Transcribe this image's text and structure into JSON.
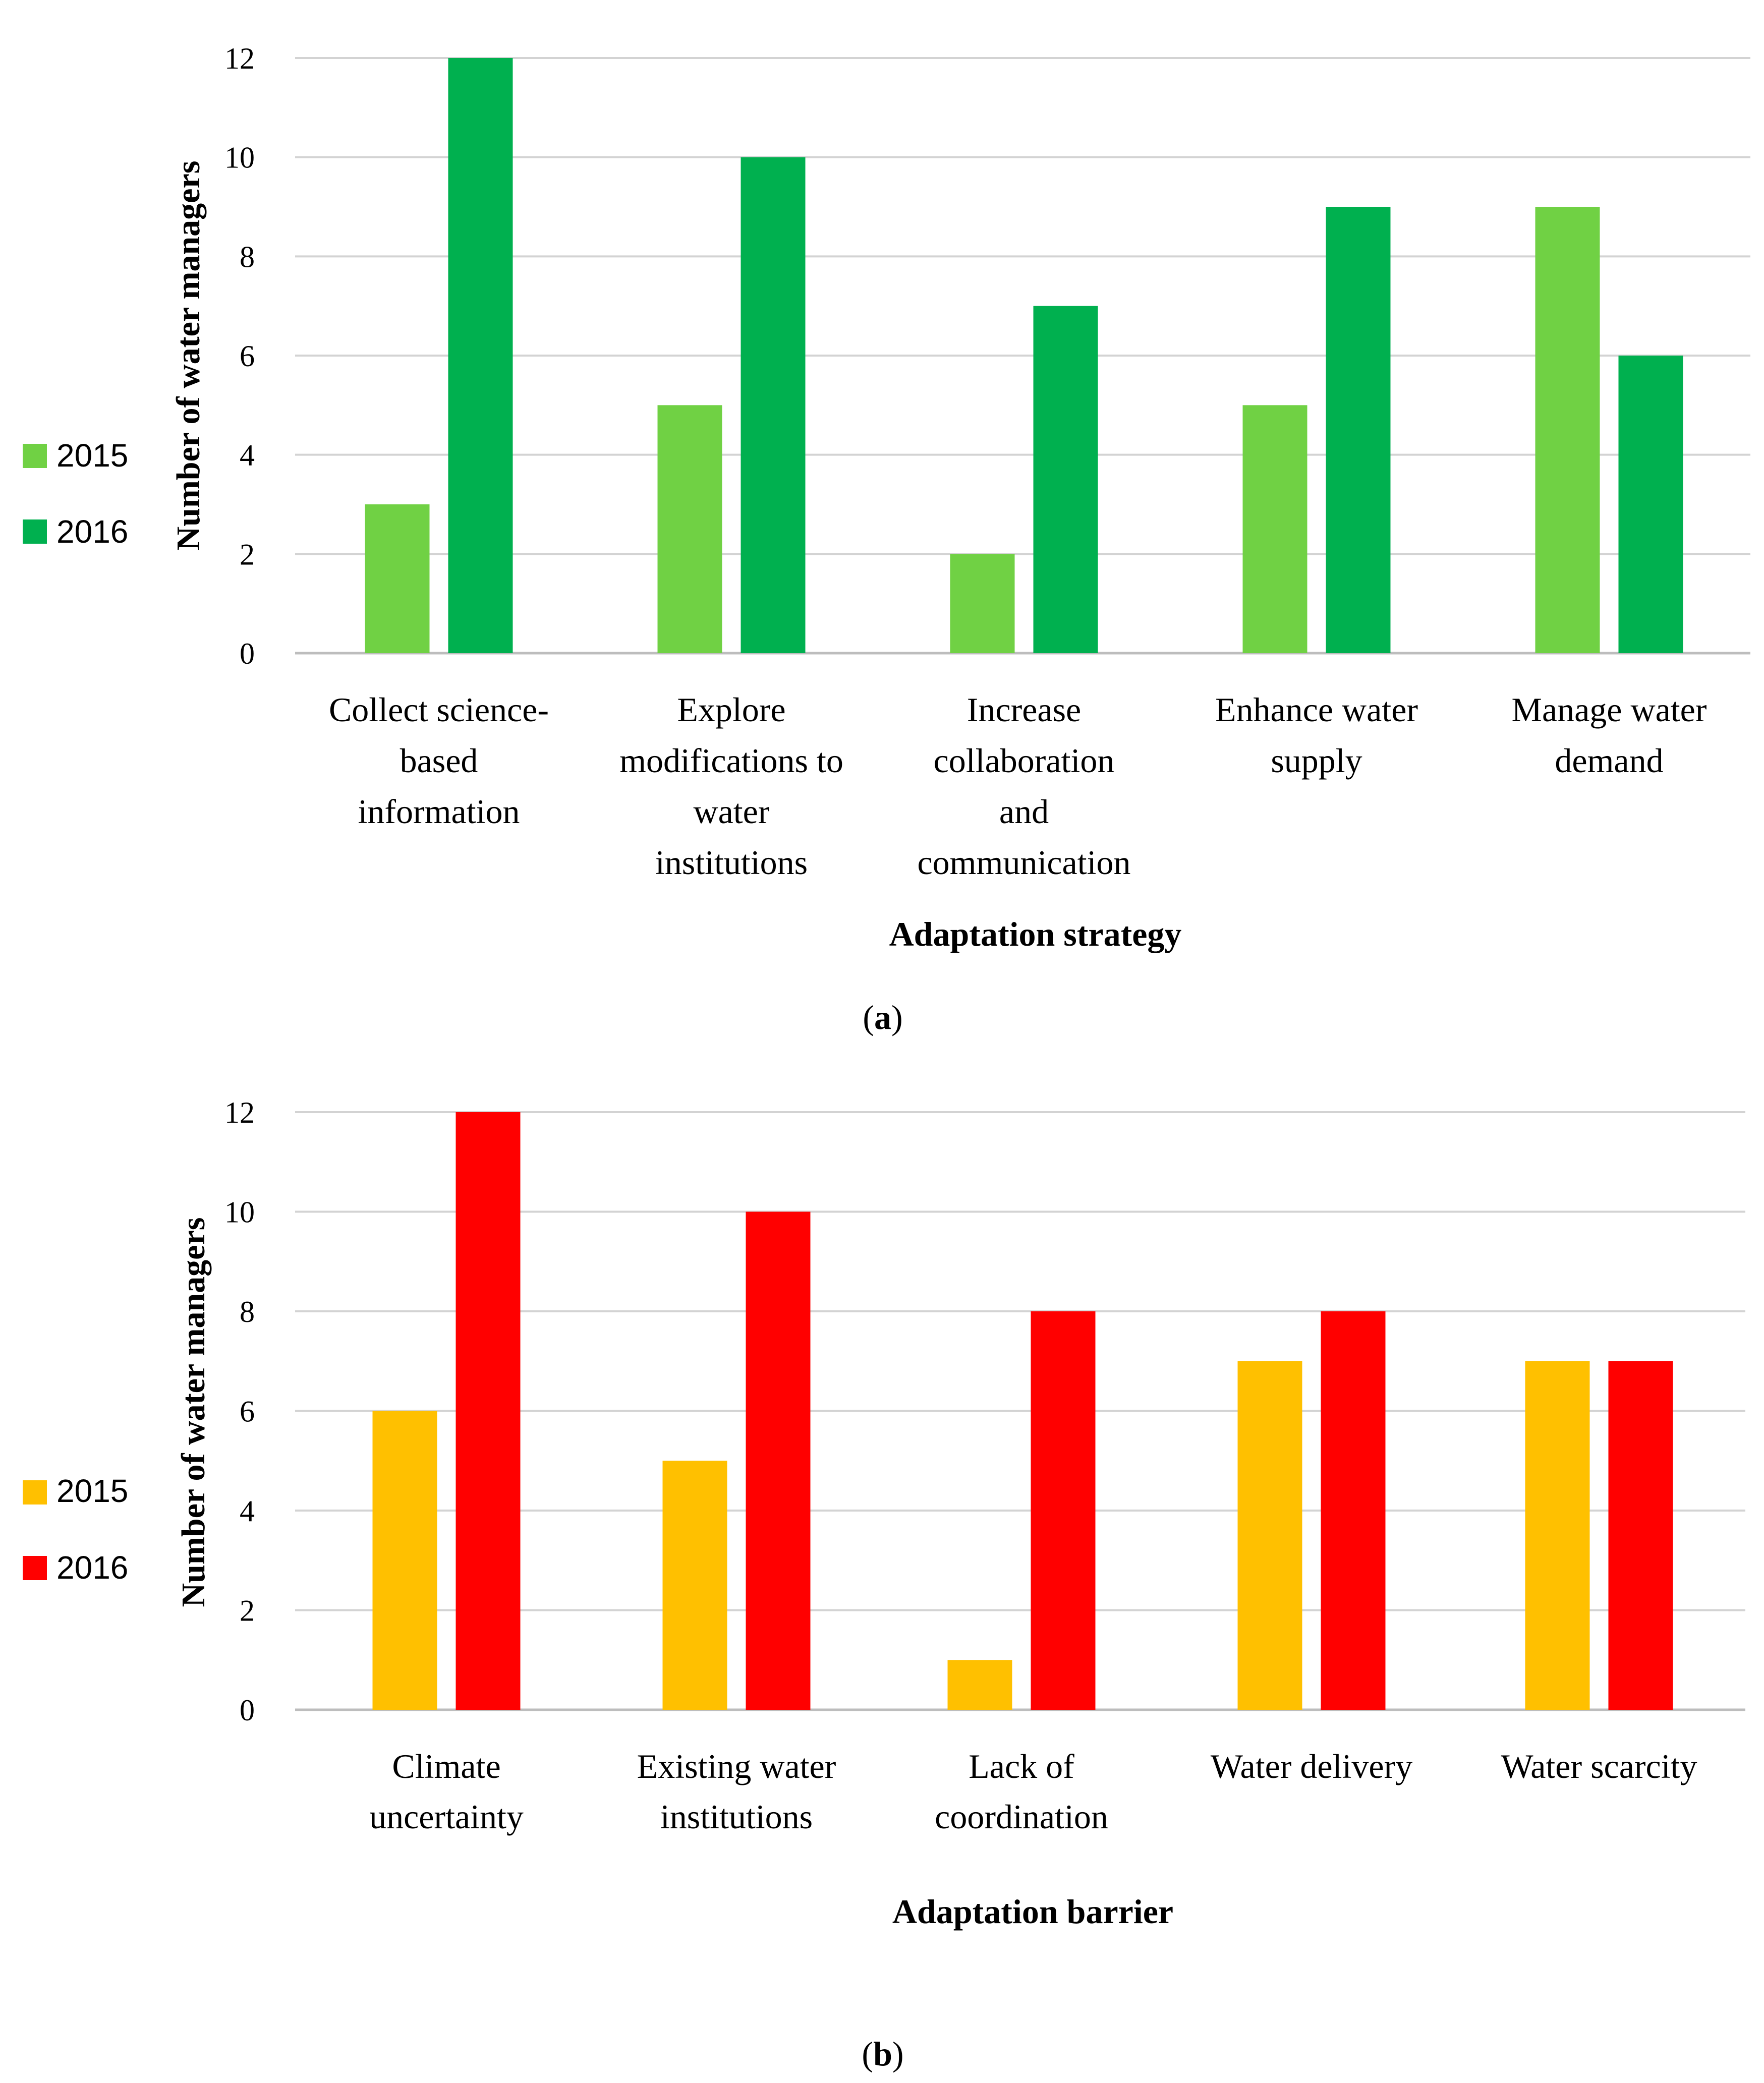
{
  "chart_data": [
    {
      "type": "bar",
      "panel_label": "a",
      "categories": [
        [
          "Collect science-",
          "based",
          "information"
        ],
        [
          "Explore",
          "modifications to",
          "water",
          "institutions"
        ],
        [
          "Increase",
          "collaboration",
          "and",
          "communication"
        ],
        [
          "Enhance water",
          "supply"
        ],
        [
          "Manage water",
          "demand"
        ]
      ],
      "series": [
        {
          "name": "2015",
          "color": "#70D144",
          "values": [
            3,
            5,
            2,
            5,
            9
          ]
        },
        {
          "name": "2016",
          "color": "#00B04F",
          "values": [
            12,
            10,
            7,
            9,
            6
          ]
        }
      ],
      "xlabel": "Adaptation strategy",
      "ylabel": "Number of water managers",
      "ylim": [
        0,
        12
      ],
      "yticks": [
        "0",
        "2",
        "4",
        "6",
        "8",
        "10",
        "12"
      ],
      "grid": true,
      "legend_position": "left"
    },
    {
      "type": "bar",
      "panel_label": "b",
      "categories": [
        [
          "Climate",
          "uncertainty"
        ],
        [
          "Existing water",
          "institutions"
        ],
        [
          "Lack of",
          "coordination"
        ],
        [
          "Water delivery"
        ],
        [
          "Water scarcity"
        ]
      ],
      "series": [
        {
          "name": "2015",
          "color": "#FFC000",
          "values": [
            6,
            5,
            1,
            7,
            7
          ]
        },
        {
          "name": "2016",
          "color": "#FF0000",
          "values": [
            12,
            10,
            8,
            8,
            7
          ]
        }
      ],
      "xlabel": "Adaptation barrier",
      "ylabel": "Number of water managers",
      "ylim": [
        0,
        12
      ],
      "yticks": [
        "0",
        "2",
        "4",
        "6",
        "8",
        "10",
        "12"
      ],
      "grid": true,
      "legend_position": "left"
    }
  ]
}
